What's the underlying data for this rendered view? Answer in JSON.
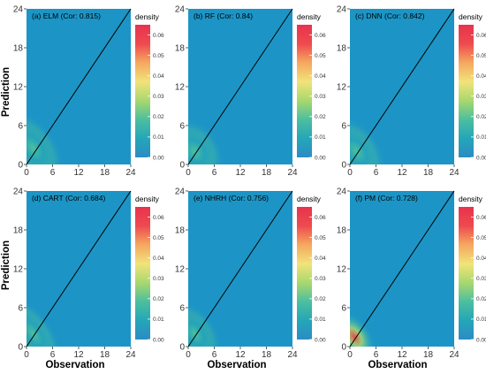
{
  "figure": {
    "ylabel": "Prediction",
    "xlabel": "Observation",
    "legend_title": "density"
  },
  "chart_data": {
    "type": "heatmap",
    "x_ticks": [
      0,
      6,
      12,
      18,
      24
    ],
    "y_ticks": [
      0,
      6,
      12,
      18,
      24
    ],
    "xlim": [
      0,
      24
    ],
    "ylim": [
      0,
      24
    ],
    "reference_line": "y = x",
    "colorbar": {
      "ticks": [
        "0.00",
        "0.01",
        "0.02",
        "0.03",
        "0.04",
        "0.05",
        "0.06"
      ],
      "range": [
        0,
        0.065
      ],
      "colors": [
        "#2b8cc4",
        "#25a6b8",
        "#4cbf9e",
        "#a9d86e",
        "#f1e37a",
        "#f5a85f",
        "#ee4a4f",
        "#e8334d"
      ]
    },
    "background_color": "#1c95c6",
    "panels": [
      {
        "title": "(a) ELM (Cor: 0.815)",
        "peak": [
          1.5,
          2.5
        ],
        "peak_density": 0.022,
        "spread": [
          5.5,
          6.5
        ]
      },
      {
        "title": "(b) RF (Cor: 0.84)",
        "peak": [
          1.5,
          2.0
        ],
        "peak_density": 0.02,
        "spread": [
          6.0,
          5.5
        ]
      },
      {
        "title": "(c) DNN (Cor: 0.842)",
        "peak": [
          1.5,
          2.0
        ],
        "peak_density": 0.022,
        "spread": [
          5.5,
          6.0
        ]
      },
      {
        "title": "(d) CART (Cor: 0.684)",
        "peak": [
          1.5,
          2.0
        ],
        "peak_density": 0.02,
        "spread": [
          4.5,
          6.5
        ]
      },
      {
        "title": "(e) NHRH (Cor: 0.756)",
        "peak": [
          1.5,
          2.0
        ],
        "peak_density": 0.02,
        "spread": [
          5.0,
          5.5
        ]
      },
      {
        "title": "(f) PM (Cor: 0.728)",
        "peak": [
          1.0,
          1.5
        ],
        "peak_density": 0.06,
        "spread": [
          4.0,
          4.5
        ]
      }
    ]
  }
}
